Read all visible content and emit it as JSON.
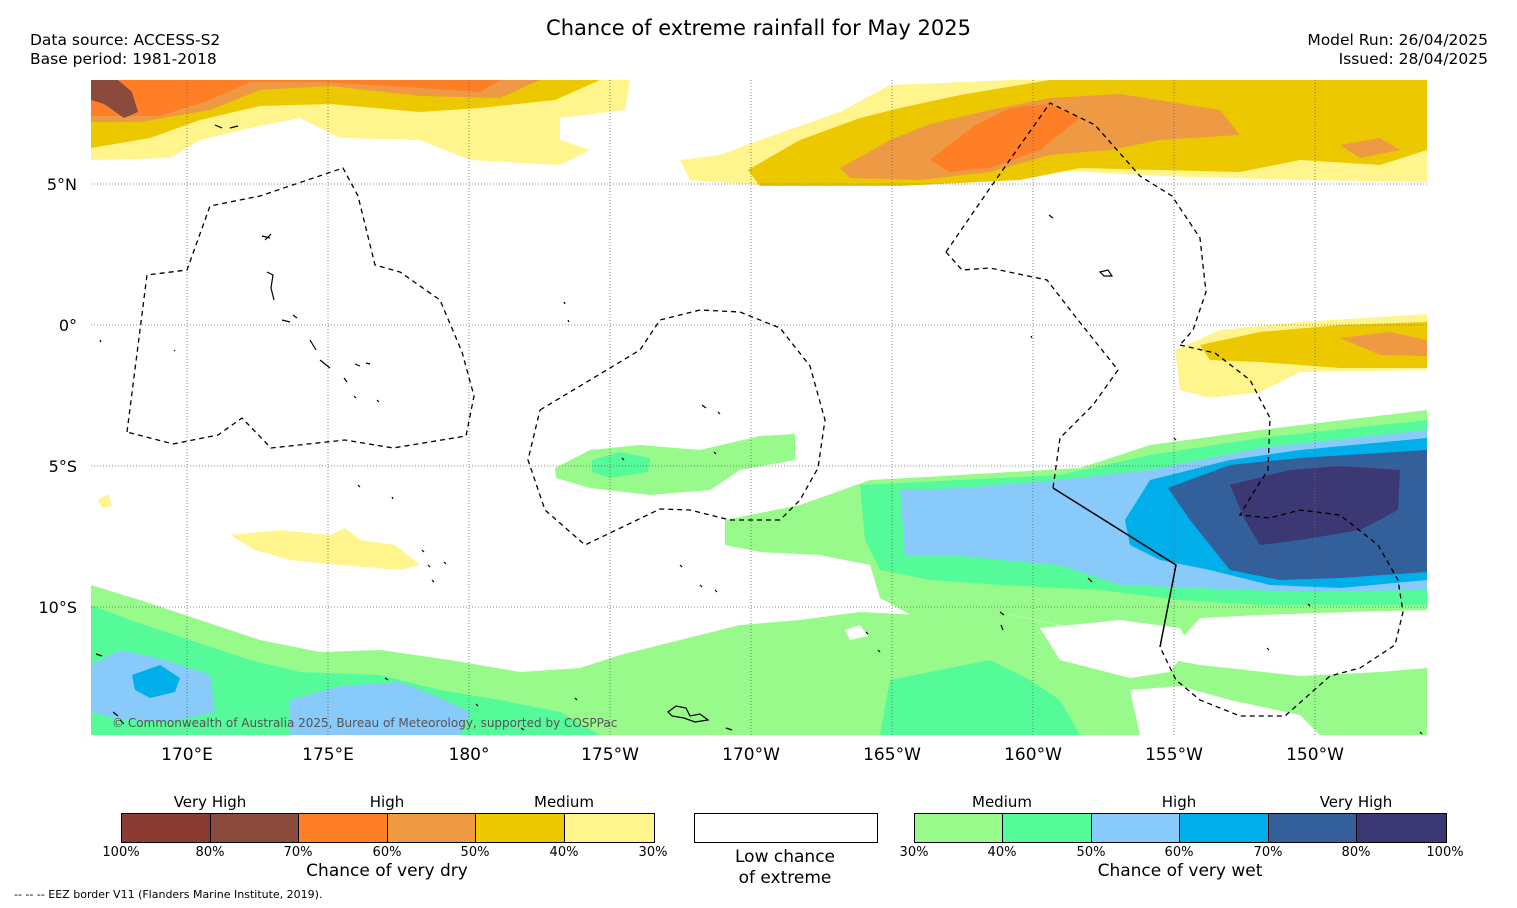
{
  "header": {
    "title": "Chance of extreme rainfall for May 2025",
    "data_source": "Data source: ACCESS-S2",
    "base_period": "Base period: 1981-2018",
    "model_run": "Model Run: 26/04/2025",
    "issued": "Issued: 28/04/2025"
  },
  "axes": {
    "lat_labels": [
      "5°N",
      "0°",
      "5°S",
      "10°S"
    ],
    "lon_labels": [
      "170°E",
      "175°E",
      "180°",
      "175°W",
      "170°W",
      "165°W",
      "160°W",
      "155°W",
      "150°W"
    ]
  },
  "colors": {
    "dry": [
      "#8a3b32",
      "#8a4a3c",
      "#ff7f27",
      "#ee9a45",
      "#ecc800",
      "#fff58c"
    ],
    "wet": [
      "#99fa8c",
      "#55fb99",
      "#88cafa",
      "#00aeea",
      "#335f9a",
      "#3b3873"
    ],
    "low": "#ffffff"
  },
  "legend": {
    "dry": {
      "levels": [
        "Very High",
        "High",
        "Medium"
      ],
      "ticks": [
        "100%",
        "80%",
        "70%",
        "60%",
        "50%",
        "40%",
        "30%"
      ],
      "caption": "Chance of very dry"
    },
    "low": {
      "caption_line1": "Low chance",
      "caption_line2": "of extreme"
    },
    "wet": {
      "levels": [
        "Medium",
        "High",
        "Very High"
      ],
      "ticks": [
        "30%",
        "40%",
        "50%",
        "60%",
        "70%",
        "80%",
        "100%"
      ],
      "caption": "Chance of very wet"
    }
  },
  "footer": {
    "copyright": "© Commonwealth of Australia 2025, Bureau of Meteorology, supported by COSPPac",
    "eez_note": "--  --  -- EEZ border V11 (Flanders Marine Institute, 2019)."
  }
}
